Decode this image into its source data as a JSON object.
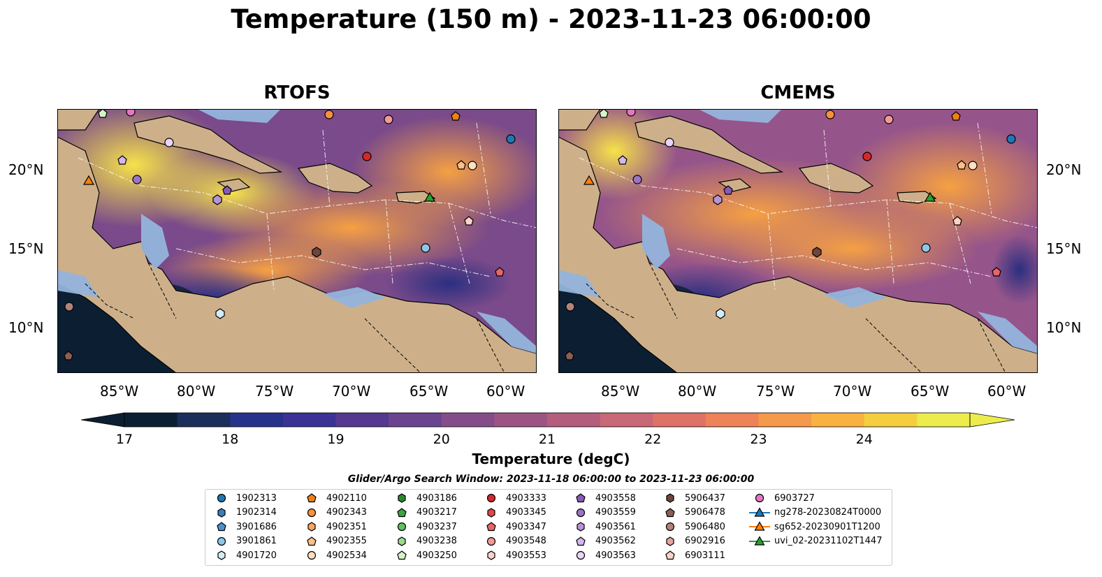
{
  "title": "Temperature (150 m) - 2023-11-23 06:00:00",
  "panels": [
    {
      "title": "RTOFS"
    },
    {
      "title": "CMEMS"
    }
  ],
  "lon_ticks": [
    "85°W",
    "80°W",
    "75°W",
    "70°W",
    "65°W",
    "60°W"
  ],
  "lat_ticks": [
    "20°N",
    "15°N",
    "10°N"
  ],
  "colorbar": {
    "label": "Temperature (degC)",
    "ticks": [
      "17",
      "18",
      "19",
      "20",
      "21",
      "22",
      "23",
      "24"
    ],
    "colors": [
      "#0c1f32",
      "#1c2e5a",
      "#27338a",
      "#3b3295",
      "#55388f",
      "#6b4490",
      "#844d8a",
      "#9c5484",
      "#b45d7d",
      "#c96876",
      "#dd7367",
      "#ee8258",
      "#f5994b",
      "#f9b240",
      "#f5ce3f",
      "#ecec4d"
    ]
  },
  "legend": {
    "title": "Glider/Argo Search Window: 2023-11-18 06:00:00 to 2023-11-23 06:00:00",
    "items": [
      {
        "label": "1902313",
        "marker": "circle",
        "color": "#1f77b4"
      },
      {
        "label": "1902314",
        "marker": "hexagon",
        "color": "#3b7fb8"
      },
      {
        "label": "3901686",
        "marker": "pentagon",
        "color": "#4f90cc"
      },
      {
        "label": "3901861",
        "marker": "circle",
        "color": "#8fc5e8"
      },
      {
        "label": "4901720",
        "marker": "hexagon",
        "color": "#d4ecfa"
      },
      {
        "label": "4902110",
        "marker": "pentagon",
        "color": "#f07f14"
      },
      {
        "label": "4902343",
        "marker": "circle",
        "color": "#f7913b"
      },
      {
        "label": "4902351",
        "marker": "hexagon",
        "color": "#f9a55a"
      },
      {
        "label": "4902355",
        "marker": "pentagon",
        "color": "#fbbf88"
      },
      {
        "label": "4902534",
        "marker": "circle",
        "color": "#fde0c1"
      },
      {
        "label": "4903186",
        "marker": "hexagon",
        "color": "#2a8a2a"
      },
      {
        "label": "4903217",
        "marker": "pentagon",
        "color": "#3fa23f"
      },
      {
        "label": "4903237",
        "marker": "circle",
        "color": "#5fc05f"
      },
      {
        "label": "4903238",
        "marker": "hexagon",
        "color": "#98dc8a"
      },
      {
        "label": "4903250",
        "marker": "pentagon",
        "color": "#d4f5c5"
      },
      {
        "label": "4903333",
        "marker": "circle",
        "color": "#d62728"
      },
      {
        "label": "4903345",
        "marker": "hexagon",
        "color": "#e04848"
      },
      {
        "label": "4903347",
        "marker": "pentagon",
        "color": "#e96464"
      },
      {
        "label": "4903548",
        "marker": "circle",
        "color": "#f29a97"
      },
      {
        "label": "4903553",
        "marker": "hexagon",
        "color": "#fbd0cd"
      },
      {
        "label": "4903558",
        "marker": "pentagon",
        "color": "#8a5ab8"
      },
      {
        "label": "4903559",
        "marker": "circle",
        "color": "#9c74c4"
      },
      {
        "label": "4903561",
        "marker": "hexagon",
        "color": "#b595d6"
      },
      {
        "label": "4903562",
        "marker": "pentagon",
        "color": "#d3b6ef"
      },
      {
        "label": "4903563",
        "marker": "circle",
        "color": "#ead4fb"
      },
      {
        "label": "5906437",
        "marker": "hexagon",
        "color": "#6e453c"
      },
      {
        "label": "5906478",
        "marker": "pentagon",
        "color": "#8c5e52"
      },
      {
        "label": "5906480",
        "marker": "circle",
        "color": "#b5827a"
      },
      {
        "label": "6902916",
        "marker": "hexagon",
        "color": "#e3a79c"
      },
      {
        "label": "6903111",
        "marker": "pentagon",
        "color": "#f8d3c8"
      },
      {
        "label": "6903727",
        "marker": "circle",
        "color": "#e377c2"
      },
      {
        "label": "ng278-20230824T0000",
        "marker": "triangle",
        "color": "#1f77b4"
      },
      {
        "label": "sg652-20230901T1200",
        "marker": "triangle",
        "color": "#ff7f0e"
      },
      {
        "label": "uvi_02-20231102T1447",
        "marker": "triangle",
        "color": "#2ca02c"
      }
    ]
  }
}
